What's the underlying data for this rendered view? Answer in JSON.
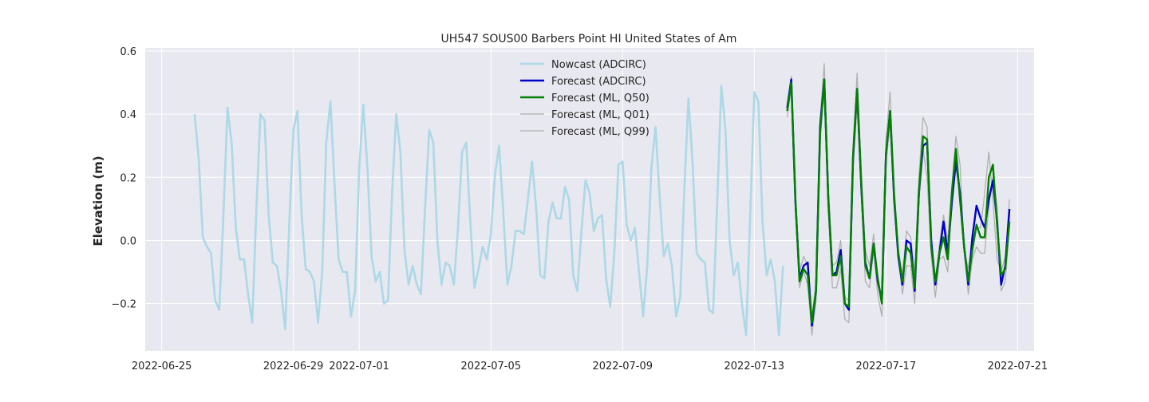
{
  "chart_data": {
    "type": "line",
    "title": "UH547 SOUS00 Barbers Point HI United States of Am",
    "xlabel": "",
    "ylabel": "Elevation (m)",
    "xlim": [
      "2022-06-24T12:00",
      "2022-07-21T12:00"
    ],
    "ylim": [
      -0.35,
      0.61
    ],
    "x_ticks": [
      "2022-06-25",
      "2022-06-29",
      "2022-07-01",
      "2022-07-05",
      "2022-07-09",
      "2022-07-13",
      "2022-07-17",
      "2022-07-21"
    ],
    "y_ticks": [
      -0.2,
      0.0,
      0.2,
      0.4,
      0.6
    ],
    "y_tick_labels": [
      "−0.2",
      "0.0",
      "0.2",
      "0.4",
      "0.6"
    ],
    "grid": true,
    "legend_position": "top-center",
    "colors": {
      "background": "#e8e8f0",
      "grid": "#ffffff",
      "nowcast": "#add8e6",
      "forecast_adcirc": "#0000cd",
      "forecast_ml_q50": "#008000",
      "forecast_ml_q01": "#b0b0b0",
      "forecast_ml_q99": "#b0b0b0"
    },
    "nowcast": {
      "x0": "2022-06-26T00:00",
      "step_hours": 3,
      "values": [
        0.4,
        0.26,
        0.01,
        -0.02,
        -0.04,
        -0.19,
        -0.22,
        0.08,
        0.42,
        0.31,
        0.04,
        -0.06,
        -0.06,
        -0.17,
        -0.26,
        0.1,
        0.4,
        0.38,
        0.08,
        -0.07,
        -0.08,
        -0.16,
        -0.28,
        0.05,
        0.35,
        0.41,
        0.08,
        -0.09,
        -0.1,
        -0.13,
        -0.26,
        -0.1,
        0.31,
        0.44,
        0.18,
        -0.06,
        -0.1,
        -0.1,
        -0.24,
        -0.16,
        0.23,
        0.43,
        0.23,
        -0.05,
        -0.13,
        -0.1,
        -0.2,
        -0.19,
        0.15,
        0.4,
        0.28,
        -0.03,
        -0.14,
        -0.08,
        -0.14,
        -0.17,
        0.1,
        0.35,
        0.31,
        0.0,
        -0.14,
        -0.07,
        -0.08,
        -0.14,
        0.04,
        0.28,
        0.31,
        0.06,
        -0.15,
        -0.09,
        -0.02,
        -0.06,
        0.02,
        0.21,
        0.3,
        0.09,
        -0.14,
        -0.08,
        0.03,
        0.03,
        0.02,
        0.13,
        0.25,
        0.1,
        -0.11,
        -0.12,
        0.06,
        0.12,
        0.07,
        0.07,
        0.17,
        0.13,
        -0.11,
        -0.16,
        0.03,
        0.19,
        0.15,
        0.03,
        0.07,
        0.08,
        -0.12,
        -0.21,
        -0.04,
        0.24,
        0.25,
        0.05,
        0.0,
        0.04,
        -0.1,
        -0.24,
        -0.08,
        0.23,
        0.36,
        0.14,
        -0.05,
        -0.01,
        -0.08,
        -0.24,
        -0.18,
        0.16,
        0.45,
        0.25,
        -0.04,
        -0.06,
        -0.07,
        -0.22,
        -0.23,
        0.12,
        0.49,
        0.35,
        0.0,
        -0.11,
        -0.07,
        -0.2,
        -0.3,
        0.07,
        0.47,
        0.44,
        0.06,
        -0.11,
        -0.06,
        -0.13,
        -0.3,
        -0.08
      ]
    },
    "forecast": {
      "x0": "2022-07-14T00:00",
      "step_hours": 3,
      "series": [
        {
          "name": "Forecast (ML, Q01)",
          "values": [
            0.39,
            0.49,
            0.1,
            -0.15,
            -0.1,
            -0.14,
            -0.3,
            -0.19,
            0.32,
            0.48,
            0.09,
            -0.15,
            -0.15,
            -0.09,
            -0.25,
            -0.26,
            0.23,
            0.43,
            0.15,
            -0.13,
            -0.15,
            -0.03,
            -0.17,
            -0.24,
            0.24,
            0.37,
            0.12,
            -0.06,
            -0.17,
            -0.08,
            -0.08,
            -0.2,
            0.12,
            0.29,
            0.2,
            -0.05,
            -0.18,
            -0.06,
            -0.05,
            -0.1,
            0.11,
            0.26,
            0.11,
            -0.01,
            -0.17,
            -0.06,
            -0.02,
            -0.04,
            -0.04,
            0.11,
            0.2,
            0.11,
            -0.16,
            -0.13,
            0.05
          ]
        },
        {
          "name": "Forecast (ML, Q99)",
          "values": [
            0.43,
            0.52,
            0.15,
            -0.1,
            -0.05,
            -0.08,
            -0.24,
            -0.13,
            0.38,
            0.56,
            0.17,
            -0.08,
            -0.07,
            0.0,
            -0.18,
            -0.19,
            0.3,
            0.53,
            0.22,
            -0.03,
            -0.08,
            0.02,
            -0.12,
            -0.18,
            0.32,
            0.47,
            0.17,
            -0.03,
            -0.11,
            0.03,
            0.01,
            -0.1,
            0.2,
            0.39,
            0.36,
            0.0,
            -0.14,
            -0.01,
            0.08,
            0.0,
            0.17,
            0.33,
            0.24,
            -0.03,
            -0.09,
            0.0,
            0.04,
            0.04,
            0.15,
            0.28,
            0.13,
            -0.06,
            -0.1,
            -0.05,
            0.13
          ]
        },
        {
          "name": "Forecast (ADCIRC)",
          "values": [
            0.42,
            0.51,
            0.12,
            -0.12,
            -0.08,
            -0.07,
            -0.27,
            -0.16,
            0.36,
            0.51,
            0.13,
            -0.11,
            -0.1,
            -0.03,
            -0.2,
            -0.22,
            0.26,
            0.48,
            0.17,
            -0.07,
            -0.12,
            -0.01,
            -0.13,
            -0.19,
            0.27,
            0.41,
            0.13,
            -0.05,
            -0.14,
            0.0,
            -0.01,
            -0.16,
            0.15,
            0.3,
            0.31,
            0.0,
            -0.14,
            -0.04,
            0.06,
            -0.04,
            0.12,
            0.25,
            0.15,
            -0.02,
            -0.14,
            0.01,
            0.11,
            0.07,
            0.04,
            0.13,
            0.19,
            0.06,
            -0.14,
            -0.08,
            0.1
          ]
        },
        {
          "name": "Forecast (ML, Q50)",
          "values": [
            0.41,
            0.5,
            0.13,
            -0.13,
            -0.09,
            -0.11,
            -0.26,
            -0.16,
            0.34,
            0.51,
            0.13,
            -0.11,
            -0.11,
            -0.05,
            -0.2,
            -0.21,
            0.27,
            0.48,
            0.18,
            -0.08,
            -0.12,
            -0.01,
            -0.12,
            -0.2,
            0.27,
            0.41,
            0.14,
            -0.04,
            -0.13,
            -0.02,
            -0.04,
            -0.15,
            0.15,
            0.33,
            0.32,
            -0.02,
            -0.13,
            -0.04,
            0.01,
            -0.06,
            0.15,
            0.29,
            0.13,
            -0.02,
            -0.13,
            -0.03,
            0.05,
            0.01,
            0.01,
            0.2,
            0.24,
            0.05,
            -0.11,
            -0.09,
            0.06
          ]
        }
      ]
    },
    "legend": [
      {
        "label": "Nowcast (ADCIRC)",
        "color": "#add8e6"
      },
      {
        "label": "Forecast (ADCIRC)",
        "color": "#0000cd"
      },
      {
        "label": "Forecast (ML, Q50)",
        "color": "#008000"
      },
      {
        "label": "Forecast (ML, Q01)",
        "color": "#b0b0b0"
      },
      {
        "label": "Forecast (ML, Q99)",
        "color": "#b0b0b0"
      }
    ]
  }
}
